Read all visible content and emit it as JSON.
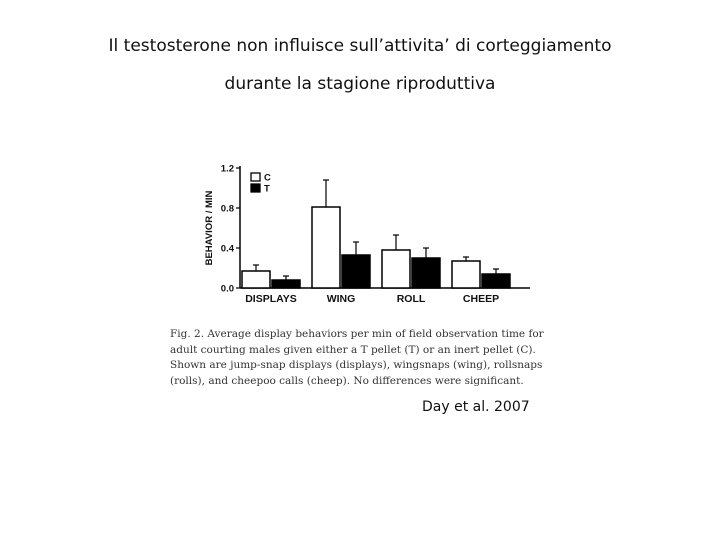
{
  "slide": {
    "title_line1": "Il testosterone non influisce sull’attivita’ di corteggiamento",
    "title_line2": "durante la stagione riproduttiva",
    "caption": "Fig. 2. Average display behaviors per min of field observation time for adult courting males given either a T pellet (T) or an inert pellet (C). Shown are jump-snap displays (displays), wingsnaps (wing), rollsnaps (rolls), and cheepoo calls (cheep). No differences were significant.",
    "citation": "Day et al. 2007"
  },
  "chart_data": {
    "type": "bar",
    "title": "",
    "xlabel": "",
    "ylabel": "BEHAVIOR / MIN",
    "ylim": [
      0,
      1.2
    ],
    "yticks": [
      0.0,
      0.4,
      0.8,
      1.2
    ],
    "ytick_labels": [
      "0.0",
      "0.4",
      "0.8",
      "1.2"
    ],
    "categories": [
      "DISPLAYS",
      "WING",
      "ROLL",
      "CHEEP"
    ],
    "series": [
      {
        "name": "C",
        "color": "#ffffff",
        "values": [
          0.17,
          0.81,
          0.38,
          0.27
        ],
        "errors": [
          0.06,
          0.27,
          0.15,
          0.04
        ]
      },
      {
        "name": "T",
        "color": "#000000",
        "values": [
          0.08,
          0.33,
          0.3,
          0.14
        ],
        "errors": [
          0.04,
          0.13,
          0.1,
          0.05
        ]
      }
    ],
    "legend_position": "top-left",
    "grid": false
  }
}
